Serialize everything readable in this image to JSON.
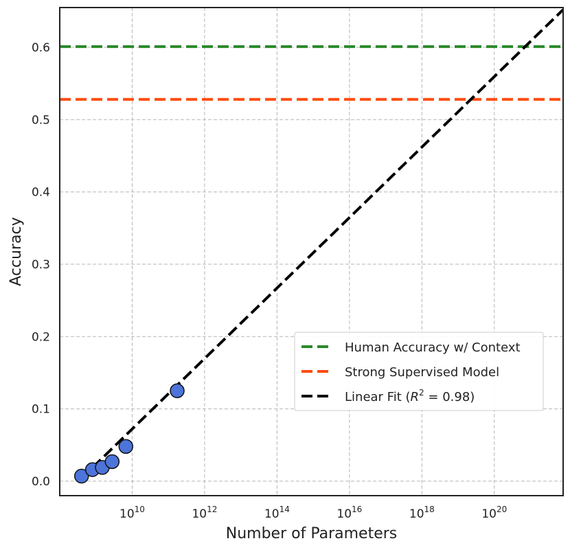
{
  "chart_data": {
    "type": "scatter",
    "xlabel": "Number of Parameters",
    "ylabel": "Accuracy",
    "xscale": "log",
    "xlim_log10": [
      8.0,
      21.9
    ],
    "ylim": [
      -0.02,
      0.655
    ],
    "grid": true,
    "legend_position": "lower-right",
    "x_ticks": [
      {
        "exp": 10,
        "base": "10",
        "sup": "10"
      },
      {
        "exp": 12,
        "base": "10",
        "sup": "12"
      },
      {
        "exp": 14,
        "base": "10",
        "sup": "14"
      },
      {
        "exp": 16,
        "base": "10",
        "sup": "16"
      },
      {
        "exp": 18,
        "base": "10",
        "sup": "18"
      },
      {
        "exp": 20,
        "base": "10",
        "sup": "20"
      }
    ],
    "y_ticks": [
      {
        "value": 0.0,
        "label": "0.0"
      },
      {
        "value": 0.1,
        "label": "0.1"
      },
      {
        "value": 0.2,
        "label": "0.2"
      },
      {
        "value": 0.3,
        "label": "0.3"
      },
      {
        "value": 0.4,
        "label": "0.4"
      },
      {
        "value": 0.5,
        "label": "0.5"
      },
      {
        "value": 0.6,
        "label": "0.6"
      }
    ],
    "points": [
      {
        "x": 400000000.0,
        "y": 0.007
      },
      {
        "x": 800000000.0,
        "y": 0.016
      },
      {
        "x": 1500000000.0,
        "y": 0.019
      },
      {
        "x": 2800000000.0,
        "y": 0.027
      },
      {
        "x": 6700000000.0,
        "y": 0.048
      },
      {
        "x": 175000000000.0,
        "y": 0.125
      }
    ],
    "fit_line": {
      "x_start": 400000000.0,
      "y_start": 0.004,
      "x_end": 7.9e+21,
      "y_end": 0.652
    },
    "reference_lines": [
      {
        "name": "Human Accuracy w/ Context",
        "y": 0.601,
        "color": "#2a8a2a"
      },
      {
        "name": "Strong Supervised Model",
        "y": 0.528,
        "color": "#ff4b0f"
      }
    ],
    "legend": [
      {
        "label": "Human Accuracy w/ Context",
        "color": "#2a8a2a"
      },
      {
        "label": "Strong Supervised Model",
        "color": "#ff4b0f"
      },
      {
        "label_prefix": "Linear Fit (",
        "label_var": "R",
        "label_sup": "2",
        "label_suffix": " = 0.98)",
        "color": "#000000"
      }
    ],
    "colors": {
      "points": "#4c74d9",
      "point_edge": "#111111",
      "fit": "#000000",
      "grid": "#b5b5b5",
      "frame": "#222222"
    }
  }
}
